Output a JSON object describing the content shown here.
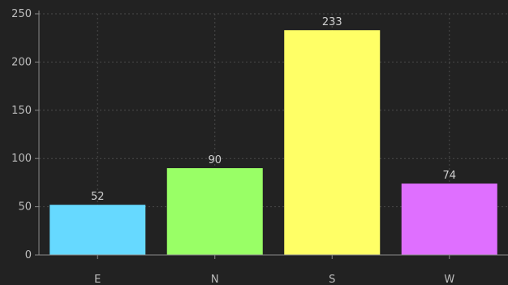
{
  "chart_data": {
    "type": "bar",
    "categories": [
      "E",
      "N",
      "S",
      "W"
    ],
    "values": [
      52,
      90,
      233,
      74
    ],
    "colors": [
      "#66d9ff",
      "#99ff66",
      "#ffff66",
      "#df6fff"
    ],
    "data_labels": [
      "52",
      "90",
      "233",
      "74"
    ],
    "ylim": [
      0,
      250
    ],
    "yticks": [
      0,
      50,
      100,
      150,
      200,
      250
    ],
    "ytick_labels": [
      "0",
      "50",
      "100",
      "150",
      "200",
      "250"
    ],
    "title": "",
    "xlabel": "",
    "ylabel": "",
    "grid": true,
    "background": "#222222"
  }
}
